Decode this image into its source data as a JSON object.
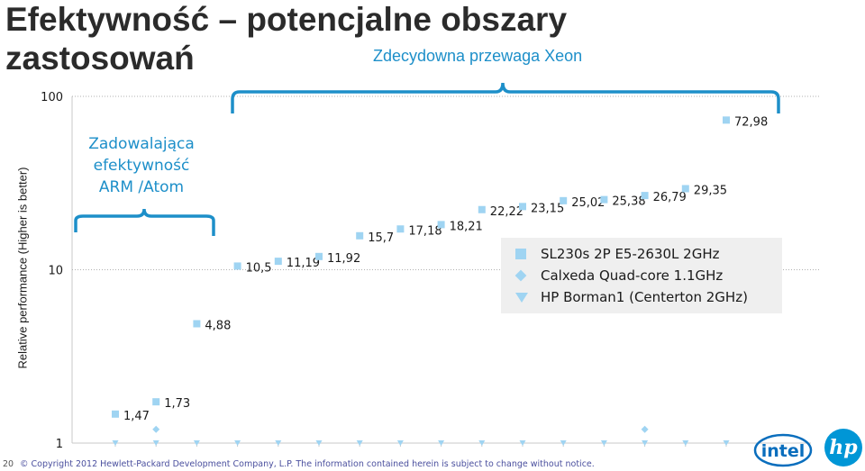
{
  "slide": {
    "title": "Efektywność – potencjalne obszary zastosowań",
    "xeon_note": "Zdecydowna przewaga Xeon",
    "arm_note": "Zadowalająca efektywność ARM /Atom",
    "footer": "© Copyright 2012 Hewlett-Packard Development Company, L.P. The information contained herein is subject to change without notice.",
    "page_number": "20"
  },
  "logos": {
    "intel": "intel",
    "hp": "hp"
  },
  "chart_data": {
    "type": "scatter",
    "ylabel": "Relative performance (Higher is better)",
    "yscale": "log",
    "ylim": [
      1,
      100
    ],
    "yticks": [
      "1",
      "10",
      "100"
    ],
    "xlabel": "",
    "legend_position": "right",
    "series": [
      {
        "name": "SL230s 2P E5-2630L 2GHz",
        "marker": "square",
        "color": "#9fd4f2",
        "values": [
          1.47,
          1.73,
          4.88,
          10.5,
          11.19,
          11.92,
          15.7,
          17.18,
          18.21,
          22.22,
          23.15,
          25.02,
          25.38,
          26.79,
          29.35,
          72.98
        ],
        "labels": [
          "1,47",
          "1,73",
          "4,88",
          "10,5",
          "11,19",
          "11,92",
          "15,7",
          "17,18",
          "18,21",
          "22,22",
          "23,15",
          "25,02",
          "25,38",
          "26,79",
          "29,35",
          "72,98"
        ]
      },
      {
        "name": "Calxeda Quad-core 1.1GHz",
        "marker": "diamond",
        "color": "#9fd4f2",
        "values": [
          null,
          1.2,
          null,
          null,
          null,
          null,
          null,
          null,
          null,
          null,
          null,
          null,
          null,
          1.2,
          null,
          null
        ]
      },
      {
        "name": "HP Borman1 (Centerton 2GHz)",
        "marker": "triangle",
        "color": "#9fd4f2",
        "values": [
          1,
          1,
          1,
          1,
          1,
          1,
          1,
          1,
          1,
          1,
          1,
          1,
          1,
          1,
          1,
          1
        ]
      }
    ]
  }
}
